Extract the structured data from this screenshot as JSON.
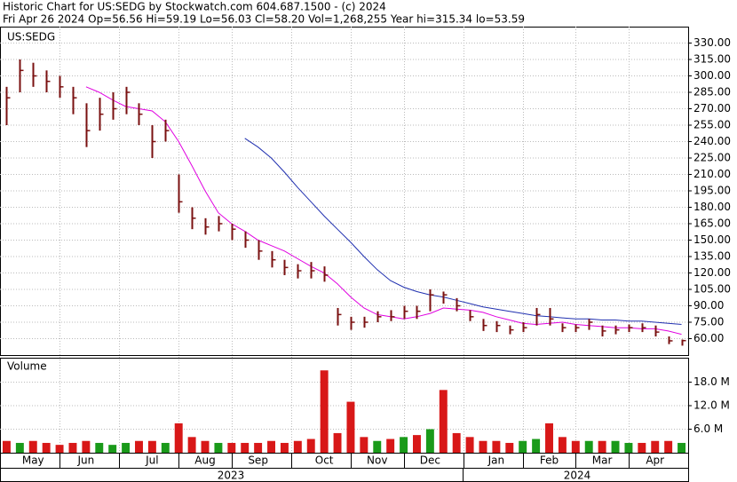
{
  "chart_data": {
    "type": "ohlc",
    "title": "Historic Chart for US:SEDG by Stockwatch.com 604.687.1500 - (c) 2024",
    "subtitle": "Fri Apr 26 2024  Op=56.56  Hi=59.19  Lo=56.03  Cl=58.20  Vol=1,268,255  Year hi=315.34  lo=53.59",
    "symbol": "US:SEDG",
    "volume_label": "Volume",
    "categories": [
      null,
      null,
      "May",
      null,
      null,
      null,
      "Jun",
      null,
      null,
      null,
      null,
      "Jul",
      null,
      null,
      null,
      "Aug",
      null,
      null,
      null,
      "Sep",
      null,
      null,
      null,
      null,
      "Oct",
      null,
      null,
      null,
      "Nov",
      null,
      null,
      null,
      "Dec",
      null,
      null,
      null,
      null,
      "Jan",
      null,
      null,
      null,
      "Feb",
      null,
      null,
      null,
      "Mar",
      null,
      null,
      null,
      "Apr",
      null,
      null
    ],
    "years": [
      "2023",
      "2024"
    ],
    "high": [
      290,
      315,
      312,
      305,
      300,
      290,
      275,
      280,
      285,
      290,
      275,
      255,
      260,
      210,
      180,
      170,
      172,
      165,
      158,
      150,
      140,
      132,
      128,
      130,
      126,
      88,
      80,
      80,
      85,
      86,
      90,
      90,
      105,
      103,
      97,
      86,
      78,
      76,
      72,
      75,
      88,
      88,
      74,
      73,
      78,
      72,
      72,
      73,
      74,
      72,
      62,
      59.19
    ],
    "low": [
      255,
      285,
      290,
      285,
      280,
      265,
      235,
      250,
      260,
      265,
      255,
      225,
      240,
      175,
      160,
      155,
      158,
      150,
      143,
      132,
      125,
      118,
      115,
      115,
      112,
      72,
      68,
      70,
      75,
      76,
      78,
      78,
      85,
      92,
      85,
      76,
      67,
      66,
      64,
      66,
      72,
      72,
      66,
      66,
      68,
      62,
      64,
      66,
      66,
      62,
      55,
      53.59
    ],
    "close": [
      280,
      305,
      300,
      295,
      290,
      280,
      250,
      265,
      270,
      285,
      265,
      240,
      250,
      185,
      170,
      162,
      165,
      160,
      150,
      140,
      132,
      125,
      122,
      122,
      118,
      82,
      75,
      75,
      80,
      80,
      85,
      85,
      100,
      100,
      90,
      80,
      72,
      72,
      68,
      70,
      82,
      78,
      70,
      70,
      75,
      67,
      68,
      70,
      70,
      66,
      58,
      58.2
    ],
    "bar_color": "#7a1010",
    "ma": [
      {
        "color": "#e000e0",
        "values": [
          null,
          null,
          null,
          null,
          null,
          null,
          290,
          285,
          278,
          272,
          270,
          268,
          258,
          240,
          218,
          195,
          175,
          165,
          158,
          150,
          145,
          140,
          133,
          126,
          120,
          110,
          98,
          88,
          82,
          80,
          78,
          80,
          83,
          88,
          87,
          86,
          84,
          80,
          77,
          74,
          73,
          74,
          75,
          73,
          72,
          71,
          70,
          70,
          69,
          69,
          67,
          64
        ]
      },
      {
        "color": "#2030b0",
        "values": [
          null,
          null,
          null,
          null,
          null,
          null,
          null,
          null,
          null,
          null,
          null,
          null,
          null,
          null,
          null,
          null,
          null,
          null,
          243,
          235,
          225,
          212,
          198,
          185,
          172,
          160,
          148,
          135,
          123,
          113,
          107,
          103,
          100,
          98,
          95,
          92,
          89,
          87,
          85,
          83,
          81,
          80,
          79,
          78,
          78,
          77,
          77,
          76,
          76,
          75,
          74,
          73
        ]
      }
    ],
    "volume": [
      3,
      2.5,
      3,
      2.5,
      2,
      2.5,
      3,
      2.5,
      2,
      2.5,
      3,
      3,
      2.5,
      7.5,
      4,
      3,
      2.5,
      2.5,
      2.5,
      2.5,
      3,
      2.5,
      3,
      3.5,
      21,
      5,
      13,
      4,
      3,
      3.5,
      4,
      4.5,
      6,
      16,
      5,
      4,
      3,
      3,
      2.5,
      3,
      3.5,
      7.5,
      4,
      3,
      3,
      3,
      3,
      2.5,
      2.5,
      3,
      3,
      2.5
    ],
    "up_color": "#1a9a1a",
    "down_color": "#d81818",
    "ylim": [
      45,
      345
    ],
    "yticks": [
      {
        "value": 60,
        "label": "60.00"
      },
      {
        "value": 75,
        "label": "75.00"
      },
      {
        "value": 90,
        "label": "90.00"
      },
      {
        "value": 105,
        "label": "105.00"
      },
      {
        "value": 120,
        "label": "120.00"
      },
      {
        "value": 135,
        "label": "135.00"
      },
      {
        "value": 150,
        "label": "150.00"
      },
      {
        "value": 165,
        "label": "165.00"
      },
      {
        "value": 180,
        "label": "180.00"
      },
      {
        "value": 195,
        "label": "195.00"
      },
      {
        "value": 210,
        "label": "210.00"
      },
      {
        "value": 225,
        "label": "225.00"
      },
      {
        "value": 240,
        "label": "240.00"
      },
      {
        "value": 255,
        "label": "255.00"
      },
      {
        "value": 270,
        "label": "270.00"
      },
      {
        "value": 285,
        "label": "285.00"
      },
      {
        "value": 300,
        "label": "300.00"
      },
      {
        "value": 315,
        "label": "315.00"
      },
      {
        "value": 330,
        "label": "330.00"
      }
    ],
    "volume_ylim": [
      0,
      24
    ],
    "volume_ticks": [
      {
        "value": 6,
        "label": "6.0 M"
      },
      {
        "value": 12,
        "label": "12.0 M"
      },
      {
        "value": 18,
        "label": "18.0 M"
      }
    ],
    "grid": true
  }
}
